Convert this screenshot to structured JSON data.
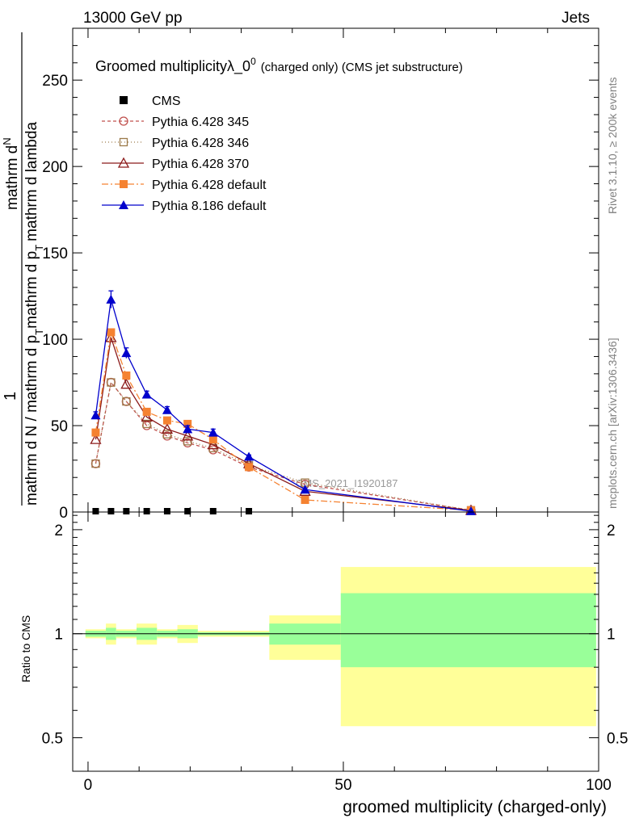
{
  "header": {
    "left": "13000 GeV pp",
    "right": "Jets"
  },
  "side": {
    "rivet": "Rivet 3.1.10, ≥ 200k events",
    "mcplots": "mcplots.cern.ch [arXiv:1306.3436]"
  },
  "chart_data": [
    {
      "type": "line",
      "title_main": "Groomed multiplicityλ_0",
      "title_sup": "0",
      "title_note": "(charged only) (CMS jet substructure)",
      "ylabel_top": "1",
      "ylabel_num": "mathrm d",
      "ylabel_num2": "N",
      "ylabel_den": "mathrm d N / mathrm d p",
      "ylabel_den_sub": "T",
      "ylabel_den2": "mathrm d p",
      "ylabel_den2_sub": "T",
      "ylabel_den3": "mathrm d lambda",
      "watermark": "CMS_2021_I1920187",
      "xlim": [
        -3,
        100
      ],
      "ylim": [
        0,
        280
      ],
      "yticks": [
        0,
        50,
        100,
        150,
        200,
        250
      ],
      "series": [
        {
          "name": "CMS",
          "color": "#000000",
          "marker": "square-filled",
          "dash": "none",
          "x": [
            1.5,
            4.5,
            7.5,
            11.5,
            15.5,
            19.5,
            24.5,
            31.5
          ],
          "y": [
            0.5,
            0.5,
            0.5,
            0.5,
            0.5,
            0.5,
            0.5,
            0.5
          ]
        },
        {
          "name": "Pythia 6.428 345",
          "color": "#c0504d",
          "marker": "circle-open",
          "dash": "4,3",
          "x": [
            1.5,
            4.5,
            7.5,
            11.5,
            15.5,
            19.5,
            24.5,
            31.5,
            42.5,
            75
          ],
          "y": [
            28,
            75,
            64,
            50,
            44,
            40,
            36,
            26,
            16,
            1
          ]
        },
        {
          "name": "Pythia 6.428 346",
          "color": "#9c7a4a",
          "marker": "square-open",
          "dash": "1,3",
          "x": [
            1.5,
            4.5,
            7.5,
            11.5,
            15.5,
            19.5,
            24.5,
            31.5,
            42.5,
            75
          ],
          "y": [
            28,
            75,
            64,
            51,
            45,
            41,
            37,
            27,
            17,
            1
          ]
        },
        {
          "name": "Pythia 6.428 370",
          "color": "#8b1a1a",
          "marker": "triangle-open",
          "dash": "none",
          "x": [
            1.5,
            4.5,
            7.5,
            11.5,
            15.5,
            19.5,
            24.5,
            31.5,
            42.5,
            75
          ],
          "y": [
            42,
            101,
            74,
            55,
            48,
            44,
            39,
            28,
            12,
            1
          ]
        },
        {
          "name": "Pythia 6.428 default",
          "color": "#f58231",
          "marker": "square-filled",
          "dash": "8,3,2,3",
          "x": [
            1.5,
            4.5,
            7.5,
            11.5,
            15.5,
            19.5,
            24.5,
            31.5,
            42.5,
            75
          ],
          "y": [
            46,
            104,
            79,
            58,
            53,
            51,
            42,
            26,
            7,
            1
          ]
        },
        {
          "name": "Pythia 8.186 default",
          "color": "#0000cc",
          "marker": "triangle-filled",
          "dash": "none",
          "x": [
            1.5,
            4.5,
            7.5,
            11.5,
            15.5,
            19.5,
            24.5,
            31.5,
            42.5,
            75
          ],
          "y": [
            56,
            123,
            92,
            68,
            59,
            48,
            46,
            32,
            13,
            0.5
          ],
          "yerr": [
            2,
            5,
            3,
            2,
            2,
            2,
            2,
            1,
            1,
            0.3
          ]
        }
      ]
    },
    {
      "type": "area",
      "ylabel": "Ratio to CMS",
      "xlabel": "groomed multiplicity (charged-only)",
      "xlim": [
        -3,
        100
      ],
      "ylim": [
        0.4,
        2.25
      ],
      "yticks": [
        0.5,
        1,
        2
      ],
      "ytick_labels": [
        "0.5",
        "1",
        "2"
      ],
      "xticks": [
        0,
        50,
        100
      ],
      "xtick_labels": [
        "0",
        "50",
        "100"
      ],
      "bins": [
        {
          "x0": -0.5,
          "x1": 3.5,
          "y_lo": 0.97,
          "y_hi": 1.03,
          "g_lo": 0.98,
          "g_hi": 1.02
        },
        {
          "x0": 3.5,
          "x1": 5.5,
          "y_lo": 0.93,
          "y_hi": 1.07,
          "g_lo": 0.96,
          "g_hi": 1.04
        },
        {
          "x0": 5.5,
          "x1": 9.5,
          "y_lo": 0.97,
          "y_hi": 1.03,
          "g_lo": 0.98,
          "g_hi": 1.02
        },
        {
          "x0": 9.5,
          "x1": 13.5,
          "y_lo": 0.93,
          "y_hi": 1.07,
          "g_lo": 0.96,
          "g_hi": 1.04
        },
        {
          "x0": 13.5,
          "x1": 17.5,
          "y_lo": 0.97,
          "y_hi": 1.03,
          "g_lo": 0.98,
          "g_hi": 1.02
        },
        {
          "x0": 17.5,
          "x1": 21.5,
          "y_lo": 0.94,
          "y_hi": 1.06,
          "g_lo": 0.97,
          "g_hi": 1.03
        },
        {
          "x0": 21.5,
          "x1": 35.5,
          "y_lo": 0.98,
          "y_hi": 1.02,
          "g_lo": 0.99,
          "g_hi": 1.01
        },
        {
          "x0": 35.5,
          "x1": 49.5,
          "y_lo": 0.84,
          "y_hi": 1.13,
          "g_lo": 0.93,
          "g_hi": 1.07
        },
        {
          "x0": 49.5,
          "x1": 99.5,
          "y_lo": 0.54,
          "y_hi": 1.56,
          "g_lo": 0.8,
          "g_hi": 1.31
        }
      ],
      "band_colors": {
        "outer": "#ffff99",
        "inner": "#99ff99"
      }
    }
  ]
}
